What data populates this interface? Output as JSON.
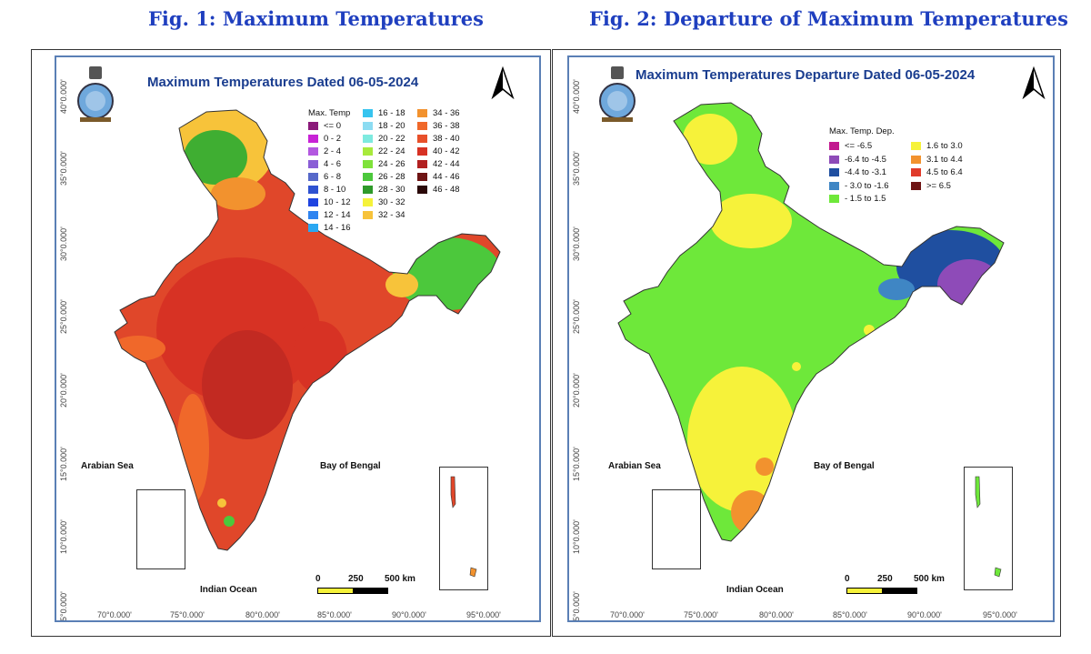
{
  "fig1": {
    "caption": "Fig. 1: Maximum Temperatures",
    "map_title": "Maximum Temperatures  Dated 06-05-2024",
    "legend_title": "Max. Temp",
    "legend": [
      {
        "label": "<= 0",
        "color": "#8b1a7a"
      },
      {
        "label": "0 - 2",
        "color": "#c823d6"
      },
      {
        "label": "2 - 4",
        "color": "#b358e0"
      },
      {
        "label": "4 - 6",
        "color": "#8a5ed6"
      },
      {
        "label": "6 - 8",
        "color": "#5668c9"
      },
      {
        "label": "8 - 10",
        "color": "#2f52d1"
      },
      {
        "label": "10 - 12",
        "color": "#1f44e0"
      },
      {
        "label": "12 - 14",
        "color": "#2f84f0"
      },
      {
        "label": "14 - 16",
        "color": "#2aa8f2"
      },
      {
        "label": "16 - 18",
        "color": "#36c4ef"
      },
      {
        "label": "18 - 20",
        "color": "#8cdcf2"
      },
      {
        "label": "20 - 22",
        "color": "#7eeadf"
      },
      {
        "label": "22 - 24",
        "color": "#a8ea3c"
      },
      {
        "label": "24 - 26",
        "color": "#7fe23a"
      },
      {
        "label": "26 - 28",
        "color": "#4cc83c"
      },
      {
        "label": "28 - 30",
        "color": "#2f9a2a"
      },
      {
        "label": "30 - 32",
        "color": "#f5f23a"
      },
      {
        "label": "32 - 34",
        "color": "#f7c33a"
      },
      {
        "label": "34 - 36",
        "color": "#f2922e"
      },
      {
        "label": "36 - 38",
        "color": "#f0682a"
      },
      {
        "label": "38 - 40",
        "color": "#e8502a"
      },
      {
        "label": "40 - 42",
        "color": "#d73224"
      },
      {
        "label": "42 - 44",
        "color": "#b22020"
      },
      {
        "label": "44 - 46",
        "color": "#6e1414"
      },
      {
        "label": "46 - 48",
        "color": "#2a0808"
      }
    ],
    "arabian_sea": "Arabian Sea",
    "bay_of_bengal": "Bay of Bengal",
    "indian_ocean": "Indian Ocean",
    "scale": {
      "s0": "0",
      "s1": "250",
      "s2": "500 km"
    },
    "lat_labels": [
      "40°0.000'",
      "35°0.000'",
      "30°0.000'",
      "25°0.000'",
      "20°0.000'",
      "15°0.000'",
      "10°0.000'",
      "5°0.000'"
    ],
    "lon_labels": [
      "70°0.000'",
      "75°0.000'",
      "80°0.000'",
      "85°0.000'",
      "90°0.000'",
      "95°0.000'"
    ]
  },
  "fig2": {
    "caption": "Fig. 2: Departure of Maximum Temperatures",
    "map_title": "Maximum Temperatures Departure Dated 06-05-2024",
    "legend_title": "Max. Temp. Dep.",
    "legend": [
      {
        "label": "<= -6.5",
        "color": "#c2188f"
      },
      {
        "label": "-6.4 to -4.5",
        "color": "#8e4bb8"
      },
      {
        "label": "-4.4 to -3.1",
        "color": "#1f4fa0"
      },
      {
        "label": "- 3.0 to -1.6",
        "color": "#3f86c4"
      },
      {
        "label": "- 1.5 to 1.5",
        "color": "#6ee83a"
      },
      {
        "label": "1.6 to  3.0",
        "color": "#f6f23a"
      },
      {
        "label": "3.1 to 4.4",
        "color": "#f2922e"
      },
      {
        "label": "4.5 to 6.4",
        "color": "#e03a2a"
      },
      {
        "label": ">= 6.5",
        "color": "#6e1414"
      }
    ],
    "arabian_sea": "Arabian Sea",
    "bay_of_bengal": "Bay of Bengal",
    "indian_ocean": "Indian Ocean",
    "scale": {
      "s0": "0",
      "s1": "250",
      "s2": "500 km"
    },
    "lat_labels": [
      "40°0.000'",
      "35°0.000'",
      "30°0.000'",
      "25°0.000'",
      "20°0.000'",
      "15°0.000'",
      "10°0.000'",
      "5°0.000'"
    ],
    "lon_labels": [
      "70°0.000'",
      "75°0.000'",
      "80°0.000'",
      "85°0.000'",
      "90°0.000'",
      "95°0.000'"
    ]
  }
}
